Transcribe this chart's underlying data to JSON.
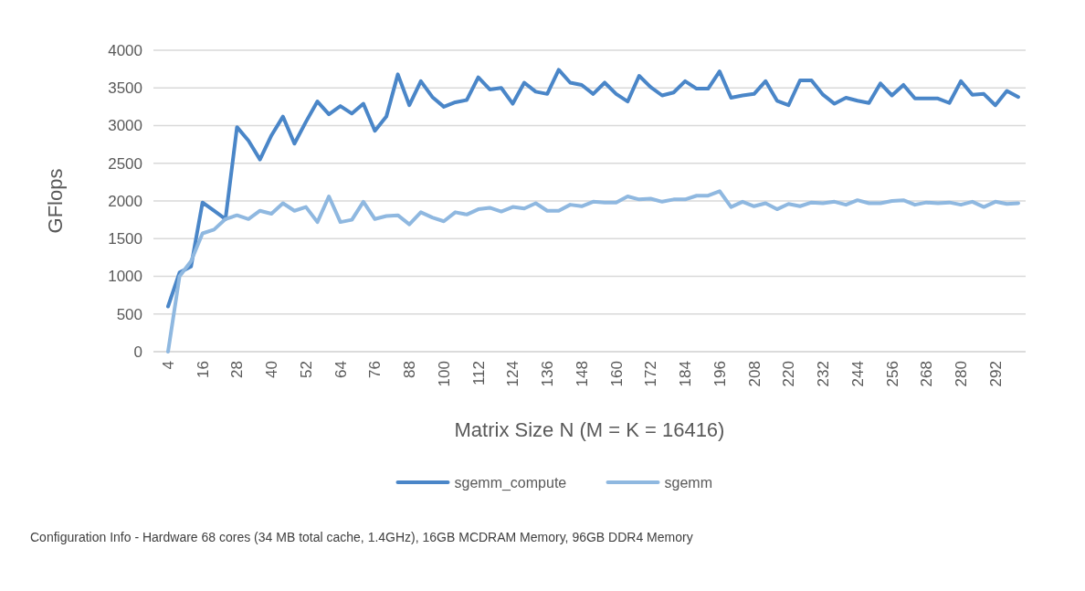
{
  "chart_data": {
    "type": "line",
    "xlabel": "Matrix Size N (M = K = 16416)",
    "ylabel": "GFlops",
    "categories": [
      "4",
      null,
      null,
      "16",
      null,
      null,
      "28",
      null,
      null,
      "40",
      null,
      null,
      "52",
      null,
      null,
      "64",
      null,
      null,
      "76",
      null,
      null,
      "88",
      null,
      null,
      "100",
      null,
      null,
      "112",
      null,
      null,
      "124",
      null,
      null,
      "136",
      null,
      null,
      "148",
      null,
      null,
      "160",
      null,
      null,
      "172",
      null,
      null,
      "184",
      null,
      null,
      "196",
      null,
      null,
      "208",
      null,
      null,
      "220",
      null,
      null,
      "232",
      null,
      null,
      "244",
      null,
      null,
      "256",
      null,
      null,
      "268",
      null,
      null,
      "280",
      null,
      null,
      "292",
      null,
      null
    ],
    "series": [
      {
        "name": "sgemm_compute",
        "color": "#4a86c8",
        "values": [
          600,
          1050,
          1130,
          1980,
          1870,
          1760,
          2980,
          2800,
          2550,
          2870,
          3120,
          2760,
          3050,
          3320,
          3150,
          3260,
          3160,
          3290,
          2930,
          3120,
          3680,
          3270,
          3590,
          3380,
          3250,
          3310,
          3340,
          3640,
          3480,
          3500,
          3290,
          3570,
          3450,
          3420,
          3740,
          3570,
          3540,
          3420,
          3570,
          3420,
          3320,
          3660,
          3510,
          3400,
          3440,
          3590,
          3490,
          3490,
          3720,
          3370,
          3400,
          3420,
          3590,
          3330,
          3270,
          3600,
          3600,
          3410,
          3290,
          3370,
          3330,
          3300,
          3560,
          3400,
          3540,
          3360,
          3360,
          3360,
          3300,
          3590,
          3410,
          3420,
          3270,
          3460,
          3380
        ]
      },
      {
        "name": "sgemm",
        "color": "#8fb8e0",
        "values": [
          0,
          1000,
          1200,
          1570,
          1620,
          1760,
          1810,
          1760,
          1870,
          1830,
          1970,
          1870,
          1920,
          1720,
          2060,
          1720,
          1750,
          1990,
          1760,
          1800,
          1810,
          1690,
          1850,
          1780,
          1730,
          1850,
          1820,
          1890,
          1910,
          1860,
          1920,
          1900,
          1970,
          1870,
          1870,
          1950,
          1930,
          1990,
          1980,
          1980,
          2060,
          2020,
          2030,
          1990,
          2020,
          2020,
          2070,
          2070,
          2130,
          1920,
          1990,
          1930,
          1970,
          1890,
          1960,
          1930,
          1980,
          1970,
          1990,
          1950,
          2010,
          1970,
          1970,
          2000,
          2010,
          1950,
          1980,
          1970,
          1980,
          1950,
          1990,
          1920,
          1990,
          1960,
          1970
        ]
      }
    ],
    "ylim": [
      0,
      4000
    ],
    "yticks": [
      0,
      500,
      1000,
      1500,
      2000,
      2500,
      3000,
      3500,
      4000
    ],
    "grid": "y",
    "legend": "bottom",
    "line_style": "solid",
    "marker": "none",
    "annotations": [
      "Configuration Info - Hardware 68 cores (34 MB total cache, 1.4GHz), 16GB MCDRAM Memory, 96GB DDR4 Memory"
    ]
  }
}
